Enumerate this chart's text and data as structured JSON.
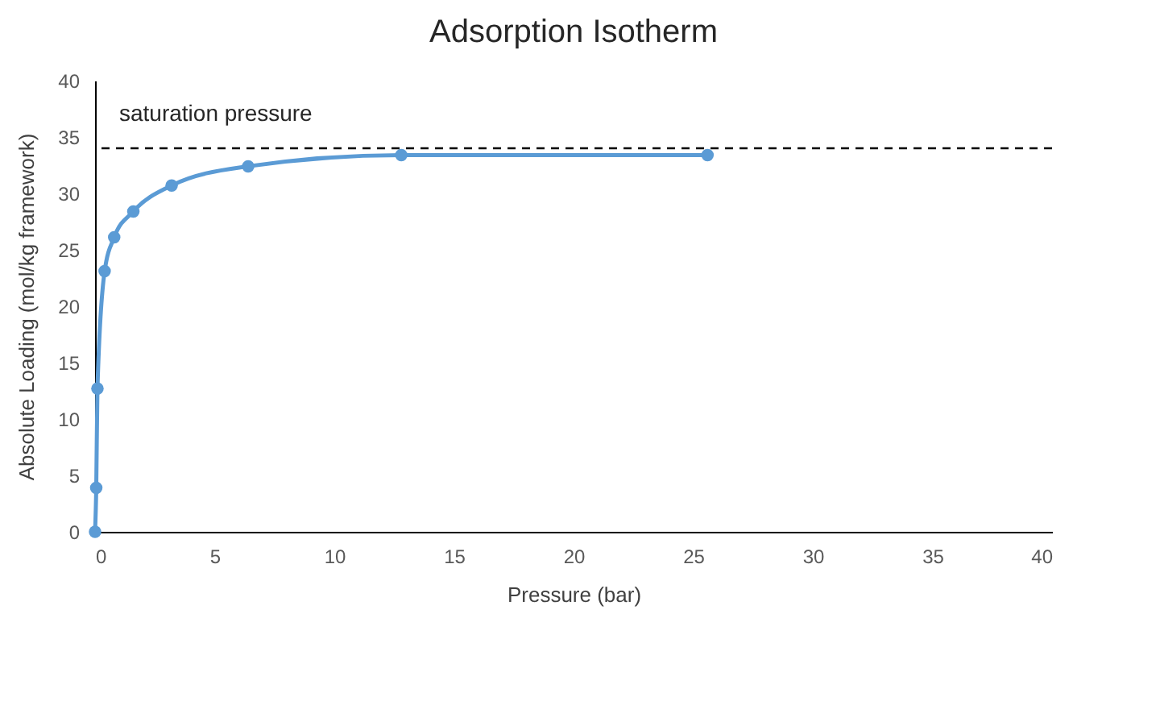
{
  "chart_data": {
    "type": "line",
    "title": "Adsorption Isotherm",
    "xlabel": "Pressure (bar)",
    "ylabel": "Absolute Loading (mol/kg framework)",
    "x": [
      0,
      0.05,
      0.1,
      0.4,
      0.8,
      1.6,
      3.2,
      6.4,
      12.8,
      25.6
    ],
    "series": [
      {
        "color": "#5b9bd5",
        "values": [
          0,
          3.9,
          12.7,
          23.1,
          26.1,
          28.4,
          30.7,
          32.4,
          33.4,
          33.4
        ]
      }
    ],
    "xlim": [
      0,
      40
    ],
    "xticks": [
      0,
      5,
      10,
      15,
      20,
      25,
      30,
      35,
      40
    ],
    "ylim": [
      0,
      40
    ],
    "yticks": [
      0,
      5,
      10,
      15,
      20,
      25,
      30,
      35,
      40
    ],
    "ref_lines": [
      {
        "axis": "y",
        "value": 34,
        "label": "saturation pressure",
        "color": "#000000",
        "line_style": "dashed"
      }
    ],
    "marker": "circle",
    "grid": false
  }
}
